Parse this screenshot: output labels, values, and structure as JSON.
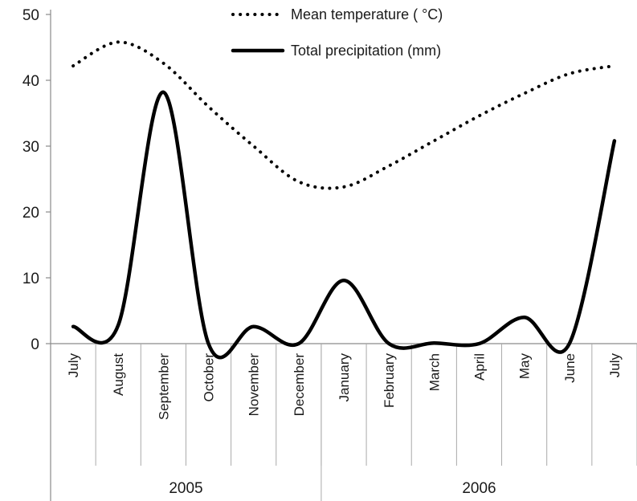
{
  "chart_data": {
    "type": "line",
    "categories": [
      "July",
      "August",
      "September",
      "October",
      "November",
      "December",
      "January",
      "February",
      "March",
      "April",
      "May",
      "June",
      "July"
    ],
    "groups": [
      {
        "label": "2005",
        "from": 0,
        "to": 5
      },
      {
        "label": "2006",
        "from": 6,
        "to": 12
      }
    ],
    "series": [
      {
        "name": "Mean temperature ( °C)",
        "style": "dotted",
        "color": "#000000",
        "values": [
          42.2,
          45.8,
          42.6,
          36.0,
          30.0,
          24.6,
          23.8,
          27.0,
          30.8,
          34.6,
          38.0,
          41.0,
          42.2
        ]
      },
      {
        "name": "Total precipitation (mm)",
        "style": "solid",
        "color": "#000000",
        "values": [
          2.6,
          2.8,
          38.2,
          0.0,
          2.6,
          0.0,
          9.6,
          0.0,
          0.1,
          0.0,
          4.0,
          0.0,
          30.8
        ]
      }
    ],
    "ylim": [
      0,
      50
    ],
    "yticks": [
      0,
      10,
      20,
      30,
      40,
      50
    ],
    "grid": false,
    "legend": "top-center"
  }
}
